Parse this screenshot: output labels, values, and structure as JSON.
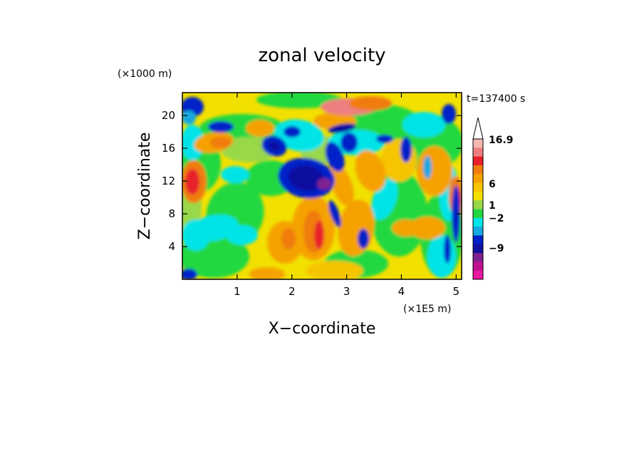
{
  "chart_data": {
    "type": "heatmap",
    "title": "zonal velocity",
    "time_label": "t=137400 s",
    "xlabel": "X−coordinate",
    "ylabel": "Z−coordinate",
    "x_unit": "(×1E5 m)",
    "y_unit": "(×1000 m)",
    "x_ticks": [
      "1",
      "2",
      "3",
      "4",
      "5"
    ],
    "y_ticks": [
      "4",
      "8",
      "12",
      "16",
      "20"
    ],
    "xlim": [
      0,
      5.1
    ],
    "ylim": [
      0,
      22.8
    ],
    "colorbar": {
      "labels": [
        "16.9",
        "6",
        "1",
        "−2",
        "−9"
      ],
      "colors_top_to_bottom": [
        "#f4b8b0",
        "#ee7f80",
        "#e8202a",
        "#f07c10",
        "#f5a200",
        "#f6c400",
        "#f2e000",
        "#98d848",
        "#22d840",
        "#00e4e8",
        "#18a8e0",
        "#0020c8",
        "#1010a0",
        "#802090",
        "#c01090",
        "#e818a0"
      ]
    }
  }
}
